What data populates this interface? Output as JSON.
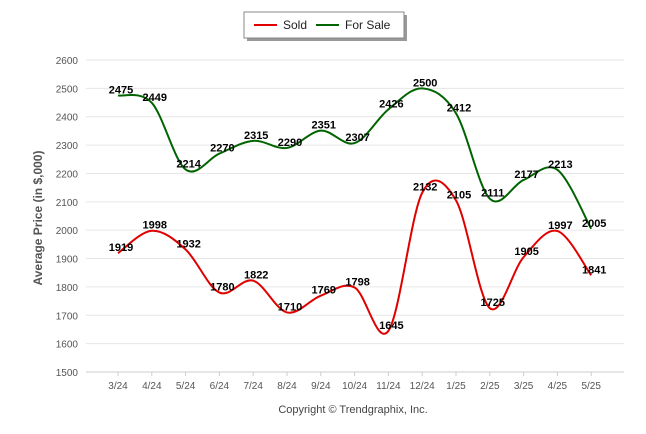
{
  "chart_data": {
    "type": "line",
    "title": "",
    "xlabel": "",
    "ylabel": "Average Price (in $,000)",
    "ylim": [
      1500,
      2600
    ],
    "yticks": [
      1500,
      1600,
      1700,
      1800,
      1900,
      2000,
      2100,
      2200,
      2300,
      2400,
      2500,
      2600
    ],
    "grid": true,
    "legend_placement": "top-center",
    "categories": [
      "3/24",
      "4/24",
      "5/24",
      "6/24",
      "7/24",
      "8/24",
      "9/24",
      "10/24",
      "11/24",
      "12/24",
      "1/25",
      "2/25",
      "3/25",
      "4/25",
      "5/25"
    ],
    "series": [
      {
        "name": "Sold",
        "color": "#e00000",
        "values": [
          1919,
          1998,
          1932,
          1780,
          1822,
          1710,
          1769,
          1798,
          1645,
          2132,
          2105,
          1725,
          1905,
          1997,
          1841
        ]
      },
      {
        "name": "For Sale",
        "color": "#006400",
        "values": [
          2475,
          2449,
          2214,
          2270,
          2315,
          2290,
          2351,
          2307,
          2426,
          2500,
          2412,
          2111,
          2177,
          2213,
          2005
        ]
      }
    ],
    "footer": "Copyright © Trendgraphix, Inc."
  }
}
